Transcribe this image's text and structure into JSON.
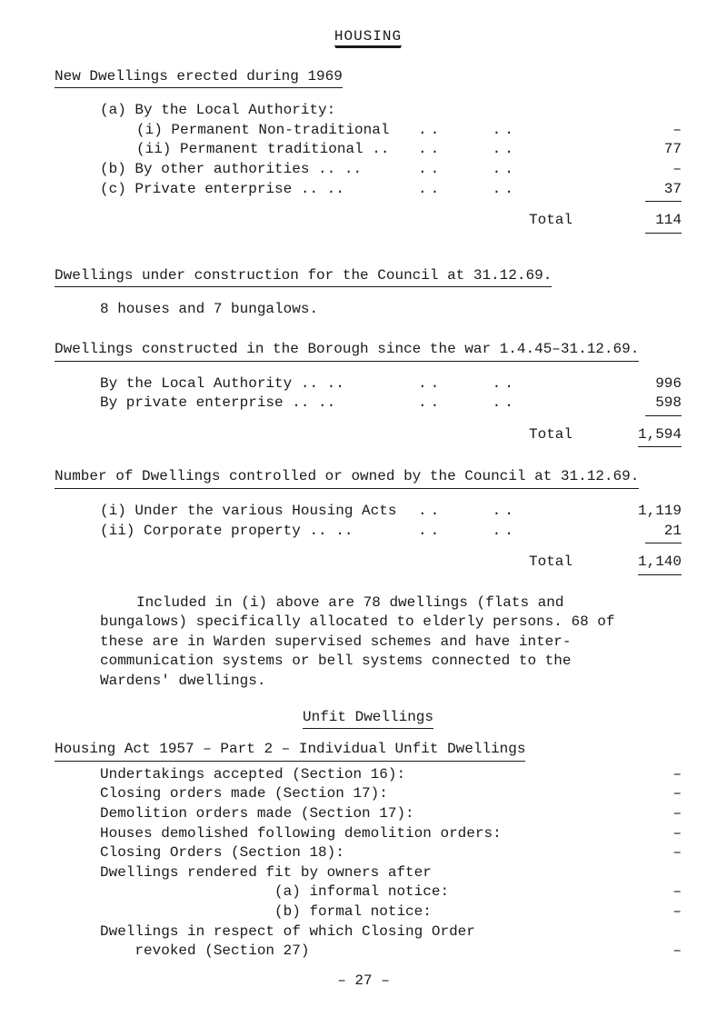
{
  "title": "HOUSING",
  "sec1": {
    "heading": "New Dwellings erected during 1969",
    "a_head": "(a)  By the Local Authority:",
    "a_i_label": "(i)  Permanent Non-traditional",
    "a_i_dots": "..    ..",
    "a_i_val": "–",
    "a_ii_label": "(ii) Permanent traditional ..",
    "a_ii_dots": "..    ..",
    "a_ii_val": "77",
    "b_label": "(b)  By other authorities ..      ..",
    "b_dots": "..    ..",
    "b_val": "–",
    "c_label": "(c)  Private enterprise   ..      ..",
    "c_dots": "..    ..",
    "c_val": "37",
    "total_label": "Total",
    "total_val": "114"
  },
  "sec2": {
    "heading": "Dwellings under construction for the Council at 31.12.69.",
    "body": "8 houses and 7 bungalows."
  },
  "sec3": {
    "heading": "Dwellings constructed in the Borough since the war 1.4.45–31.12.69.",
    "r1_label": "By the Local Authority    ..     ..",
    "r1_dots": "..    ..",
    "r1_val": "996",
    "r2_label": "By private enterprise     ..     ..",
    "r2_dots": "..    ..",
    "r2_val": "598",
    "total_label": "Total",
    "total_val": "1,594"
  },
  "sec4": {
    "heading": "Number of Dwellings controlled or owned by the Council at 31.12.69.",
    "r1_label": "(i)  Under the various Housing Acts",
    "r1_dots": "..    ..",
    "r1_val": "1,119",
    "r2_label": "(ii) Corporate property   ..     ..",
    "r2_dots": "..    ..",
    "r2_val": "21",
    "total_label": "Total",
    "total_val": "1,140"
  },
  "para1": "Included in (i) above are 78 dwellings (flats and bungalows) specifically allocated to elderly persons.  68 of these are in Warden supervised schemes and have inter-communication systems or bell systems connected to the Wardens' dwellings.",
  "sec5": {
    "heading": "Unfit Dwellings",
    "sub": "Housing Act 1957 – Part 2 – Individual Unfit Dwellings",
    "items": [
      {
        "label": "Undertakings accepted (Section 16):",
        "val": "–"
      },
      {
        "label": "Closing orders made (Section 17):",
        "val": "–"
      },
      {
        "label": "Demolition orders made (Section 17):",
        "val": "–"
      },
      {
        "label": "Houses demolished following demolition orders:",
        "val": "–"
      },
      {
        "label": "Closing Orders (Section 18):",
        "val": "–"
      },
      {
        "label": "Dwellings rendered fit by owners after",
        "val": ""
      },
      {
        "label": "                    (a) informal notice:",
        "val": "–"
      },
      {
        "label": "                    (b) formal notice:",
        "val": "–"
      },
      {
        "label": "Dwellings in respect of which Closing Order",
        "val": ""
      },
      {
        "label": "    revoked (Section 27)",
        "val": "–"
      }
    ]
  },
  "footer": "– 27 –"
}
